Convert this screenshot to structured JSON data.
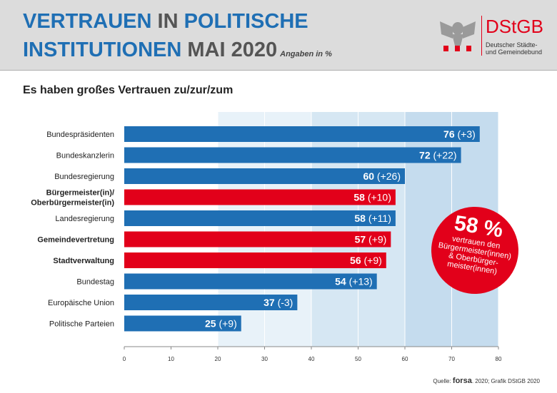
{
  "header": {
    "title_line1_a": "VERTRAUEN",
    "title_line1_b": " IN ",
    "title_line1_c": "POLITISCHE",
    "title_line2_a": "INSTITUTIONEN",
    "title_line2_b": " MAI 2020",
    "unit_note": "Angaben in %"
  },
  "logo": {
    "name": "DStGB",
    "sub1": "Deutscher Städte-",
    "sub2": "und Gemeindebund",
    "colors": {
      "red": "#e2001a"
    }
  },
  "subtitle": "Es haben großes Vertrauen zu/zur/zum",
  "badge": {
    "value": "58 %",
    "text": "vertrauen den Bürgermeister(innen) & Oberbürger-meister(innen)"
  },
  "source": {
    "prefix": "Quelle: ",
    "brand": "forsa",
    "suffix": ". 2020; Grafik DStGB 2020"
  },
  "colors": {
    "blue": "#1f6fb4",
    "red": "#e2001a",
    "band_light": "#e8f2f9",
    "band_mid": "#d6e7f3",
    "band_dark": "#c5dcee"
  },
  "chart_data": {
    "type": "bar",
    "orientation": "horizontal",
    "categories": [
      "Bundespräsidenten",
      "Bundeskanzlerin",
      "Bundesregierung",
      "Bürgermeister(in)/\nOberbürgermeister(in)",
      "Landesregierung",
      "Gemeindevertretung",
      "Stadtverwaltung",
      "Bundestag",
      "Europäische Union",
      "Politische Parteien"
    ],
    "values": [
      76,
      72,
      60,
      58,
      58,
      57,
      56,
      54,
      37,
      25
    ],
    "changes": [
      "(+3)",
      "(+22)",
      "(+26)",
      "(+10)",
      "(+11)",
      "(+9)",
      "(+9)",
      "(+13)",
      "(-3)",
      "(+9)"
    ],
    "highlight": [
      false,
      false,
      false,
      true,
      false,
      true,
      true,
      false,
      false,
      false
    ],
    "xlim": [
      0,
      80
    ],
    "xticks": [
      0,
      10,
      20,
      30,
      40,
      50,
      60,
      70,
      80
    ],
    "bands": [
      [
        20,
        40
      ],
      [
        40,
        60
      ],
      [
        60,
        80
      ]
    ],
    "grid": true
  }
}
